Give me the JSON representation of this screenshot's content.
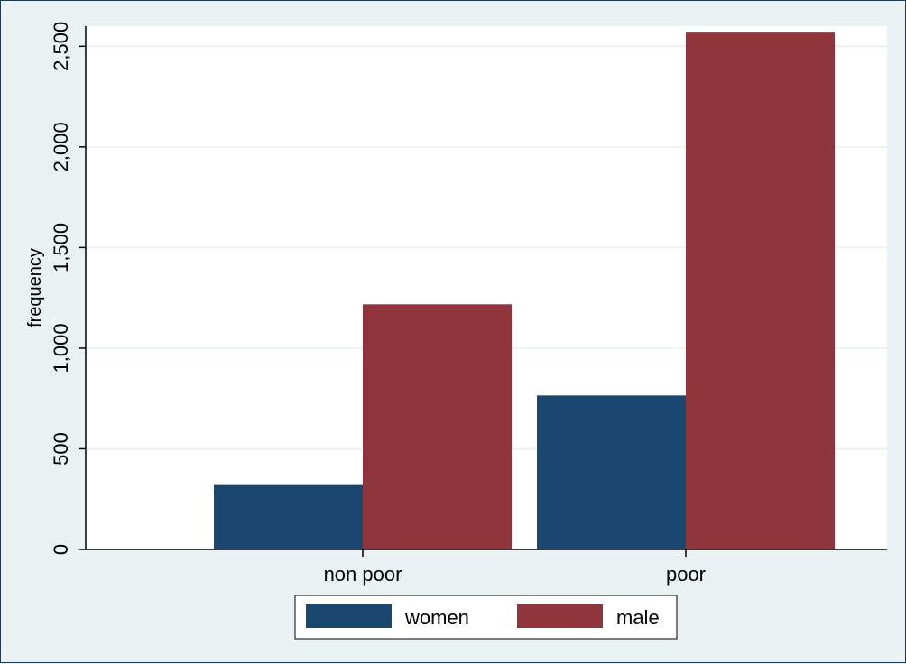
{
  "chart_data": {
    "type": "bar",
    "categories": [
      "non poor",
      "poor"
    ],
    "series": [
      {
        "name": "women",
        "values": [
          320,
          765
        ],
        "color": "#1a476f"
      },
      {
        "name": "male",
        "values": [
          1218,
          2568
        ],
        "color": "#90353b"
      }
    ],
    "ylabel": "frequency",
    "xlabel": "",
    "ylim": [
      0,
      2600
    ],
    "yticks": [
      0,
      500,
      1000,
      1500,
      2000,
      2500
    ],
    "ytick_labels": [
      "0",
      "500",
      "1,000",
      "1,500",
      "2,000",
      "2,500"
    ],
    "grid": true,
    "legend_position": "bottom"
  },
  "colors": {
    "background": "#eaf2f3",
    "plot_background": "#ffffff",
    "gridline": "#eaf2f3",
    "axis": "#000000"
  }
}
